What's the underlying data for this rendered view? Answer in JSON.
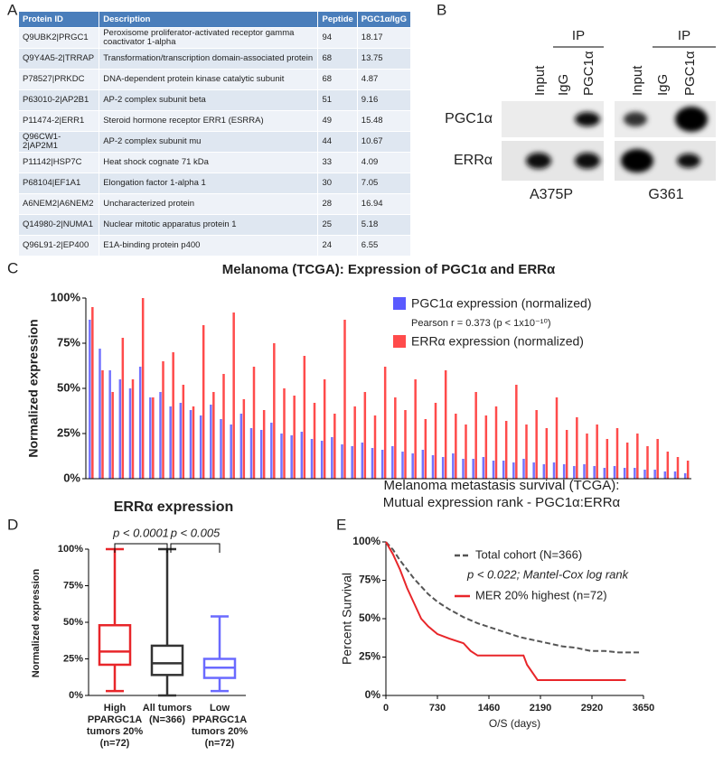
{
  "panel_labels": [
    "A",
    "B",
    "C",
    "D",
    "E"
  ],
  "table": {
    "header": [
      "Protein ID",
      "Description",
      "Peptide",
      "PGC1α/IgG"
    ],
    "rows": [
      [
        "Q9UBK2|PRGC1",
        "Peroxisome proliferator-activated receptor gamma coactivator 1-alpha",
        94,
        18.17
      ],
      [
        "Q9Y4A5-2|TRRAP",
        "Transformation/transcription domain-associated protein",
        68,
        13.75
      ],
      [
        "P78527|PRKDC",
        "DNA-dependent protein kinase catalytic subunit",
        68,
        4.87
      ],
      [
        "P63010-2|AP2B1",
        "AP-2 complex subunit beta",
        51,
        9.16
      ],
      [
        "P11474-2|ERR1",
        "Steroid hormone receptor ERR1 (ESRRA)",
        49,
        15.48
      ],
      [
        "Q96CW1-2|AP2M1",
        "AP-2 complex subunit mu",
        44,
        10.67
      ],
      [
        "P11142|HSP7C",
        "Heat shock cognate 71 kDa",
        33,
        4.09
      ],
      [
        "P68104|EF1A1",
        "Elongation factor 1-alpha 1",
        30,
        7.05
      ],
      [
        "A6NEM2|A6NEM2",
        "Uncharacterized protein",
        28,
        16.94
      ],
      [
        "Q14980-2|NUMA1",
        "Nuclear mitotic apparatus protein 1",
        25,
        5.18
      ],
      [
        "Q96L91-2|EP400",
        "E1A-binding protein p400",
        24,
        6.55
      ]
    ]
  },
  "blot": {
    "rows": [
      "PGC1α",
      "ERRα"
    ],
    "groups": [
      {
        "ip": "IP",
        "lanes": [
          "Input",
          "IgG",
          "PGC1α"
        ],
        "cell_line": "A375P"
      },
      {
        "ip": "IP",
        "lanes": [
          "Input",
          "IgG",
          "PGC1α"
        ],
        "cell_line": "G361"
      }
    ]
  },
  "chart_data": [
    {
      "type": "bar",
      "title": "Melanoma (TCGA): Expression of PGC1α and ERRα",
      "y_label": "Normalized expression",
      "annotation": "Pearson r = 0.373  (p < 1x10⁻¹⁰)",
      "ylim": [
        0,
        100
      ],
      "yticks": [
        {
          "value": 0,
          "label": "0%"
        },
        {
          "value": 25,
          "label": "25%"
        },
        {
          "value": 50,
          "label": "50%"
        },
        {
          "value": 75,
          "label": "75%"
        },
        {
          "value": 100,
          "label": "100%"
        }
      ],
      "series": [
        {
          "name": "ERRα expression (normalized)",
          "color": "#ff4b4b",
          "values": [
            95,
            60,
            48,
            78,
            55,
            100,
            45,
            65,
            70,
            52,
            40,
            85,
            48,
            58,
            92,
            44,
            62,
            38,
            75,
            50,
            46,
            68,
            42,
            55,
            36,
            88,
            40,
            48,
            35,
            62,
            45,
            38,
            55,
            33,
            42,
            60,
            36,
            30,
            48,
            35,
            40,
            32,
            52,
            30,
            38,
            28,
            45,
            27,
            34,
            25,
            30,
            22,
            28,
            20,
            25,
            18,
            22,
            15,
            12,
            10
          ]
        },
        {
          "name": "PGC1α expression (normalized)",
          "color": "#5a5aff",
          "values": [
            88,
            72,
            60,
            55,
            50,
            62,
            45,
            48,
            40,
            42,
            38,
            35,
            41,
            33,
            30,
            36,
            28,
            27,
            31,
            25,
            24,
            26,
            22,
            21,
            23,
            19,
            18,
            20,
            17,
            16,
            18,
            15,
            14,
            16,
            13,
            12,
            14,
            11,
            11,
            12,
            10,
            10,
            9,
            11,
            9,
            8,
            9,
            8,
            7,
            8,
            7,
            6,
            7,
            6,
            6,
            5,
            5,
            4,
            4,
            3
          ]
        }
      ]
    },
    {
      "type": "box",
      "title": "ERRα expression",
      "y_label": "Normalized expression",
      "categories": [
        "High PPARGC1A tumors 20% (n=72)",
        "All tumors (N=366)",
        "Low PPARGC1A tumors 20% (n=72)"
      ],
      "colors": [
        "#e8262a",
        "#333333",
        "#6a6aff"
      ],
      "boxes": [
        {
          "min": 3,
          "q1": 21,
          "median": 30,
          "q3": 48,
          "max": 100
        },
        {
          "min": 0,
          "q1": 14,
          "median": 22,
          "q3": 34,
          "max": 100
        },
        {
          "min": 3,
          "q1": 12,
          "median": 19,
          "q3": 25,
          "max": 54
        }
      ],
      "annotations": [
        "p < 0.0001",
        "p < 0.005"
      ],
      "ylim": [
        0,
        100
      ],
      "yticks": [
        {
          "value": 0,
          "label": "0%"
        },
        {
          "value": 25,
          "label": "25%"
        },
        {
          "value": 50,
          "label": "50%"
        },
        {
          "value": 75,
          "label": "75%"
        },
        {
          "value": 100,
          "label": "100%"
        }
      ]
    },
    {
      "type": "line",
      "title": "Melanoma metastasis survival (TCGA):",
      "subtitle": "Mutual expression rank - PGC1α:ERRα",
      "x_label": "O/S (days)",
      "y_label": "Percent Survival",
      "annotation": "p < 0.022; Mantel-Cox log rank",
      "xlim": [
        0,
        3650
      ],
      "xticks": [
        0,
        730,
        1460,
        2190,
        2920,
        3650
      ],
      "ylim": [
        0,
        100
      ],
      "yticks": [
        {
          "value": 0,
          "label": "0%"
        },
        {
          "value": 25,
          "label": "25%"
        },
        {
          "value": 50,
          "label": "50%"
        },
        {
          "value": 75,
          "label": "75%"
        },
        {
          "value": 100,
          "label": "100%"
        }
      ],
      "series": [
        {
          "name": "Total cohort (N=366)",
          "color": "#555555",
          "dashed": true,
          "x": [
            0,
            100,
            200,
            300,
            400,
            500,
            600,
            730,
            900,
            1100,
            1300,
            1500,
            1700,
            1900,
            2100,
            2300,
            2500,
            2700,
            2900,
            3100,
            3300,
            3600
          ],
          "values": [
            100,
            95,
            88,
            82,
            76,
            71,
            66,
            61,
            56,
            51,
            47,
            44,
            41,
            38,
            36,
            34,
            32,
            31,
            29,
            29,
            28,
            28
          ]
        },
        {
          "name": "MER 20% highest (n=72)",
          "color": "#e8262a",
          "dashed": false,
          "x": [
            0,
            100,
            200,
            300,
            400,
            500,
            600,
            730,
            900,
            1100,
            1200,
            1300,
            1600,
            1950,
            2000,
            2150,
            3400
          ],
          "values": [
            100,
            92,
            82,
            70,
            60,
            50,
            45,
            40,
            37,
            34,
            29,
            26,
            26,
            26,
            20,
            10,
            10
          ]
        }
      ]
    }
  ]
}
